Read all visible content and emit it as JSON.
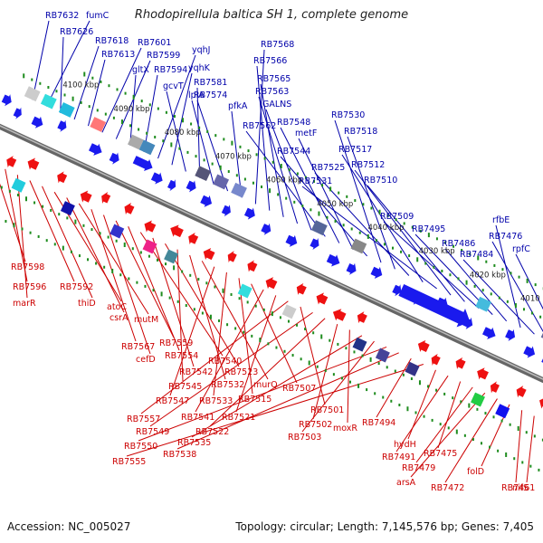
{
  "title": "Rhodopirellula baltica SH 1, complete genome",
  "footer": {
    "accession": "Accession: NC_005027",
    "topology": "Topology: circular; Length: 7,145,576 bp; Genes: 7,405"
  },
  "colors": {
    "forward": "#1a1aee",
    "reverse": "#ee1111",
    "forward_label": "#0000aa",
    "reverse_label": "#cc0000",
    "backbone": "#777777",
    "dots": "#1e8c1e"
  },
  "scale_ticks": [
    {
      "label": "4100 kbp"
    },
    {
      "label": "4090 kbp"
    },
    {
      "label": "4080 kbp"
    },
    {
      "label": "4070 kbp"
    },
    {
      "label": "4060 kbp"
    },
    {
      "label": "4050 kbp"
    },
    {
      "label": "4040 kbp"
    },
    {
      "label": "4030 kbp"
    },
    {
      "label": "4020 kbp"
    },
    {
      "label": "4010 kbp"
    }
  ],
  "forward_labels": [
    "RB7632",
    "fumC",
    "RB7626",
    "RB7618",
    "RB7613",
    "RB7601",
    "RB7599",
    "gltX",
    "RB7594",
    "yqhJ",
    "yqhK",
    "gcvT",
    "RB7581",
    "lplA",
    "RB7574",
    "pfkA",
    "RB7568",
    "RB7566",
    "RB7565",
    "RB7563",
    "GALNS",
    "RB7562",
    "RB7548",
    "metF",
    "RB7544",
    "RB7530",
    "RB7518",
    "RB7525",
    "RB7517",
    "RB7531",
    "RB7512",
    "RB7510",
    "RB7509",
    "RB7495",
    "RB7486",
    "rfbE",
    "RB7484",
    "RB7476",
    "rpfC"
  ],
  "reverse_labels": [
    "RB7598",
    "RB7596",
    "marR",
    "RB7592",
    "thiD",
    "atoC",
    "csrA",
    "mutM",
    "RB7567",
    "cefD",
    "RB7559",
    "RB7554",
    "RB7540",
    "RB7542",
    "RB7523",
    "RB7545",
    "RB7532",
    "murQ",
    "RB7547",
    "RB7533",
    "RB7515",
    "RB7507",
    "RB7541",
    "RB7521",
    "RB7557",
    "RB7501",
    "RB7549",
    "RB7522",
    "RB7502",
    "moxR",
    "RB7535",
    "RB7503",
    "RB7550",
    "RB7538",
    "RB7494",
    "RB7555",
    "hydH",
    "RB7491",
    "RB7475",
    "RB7479",
    "arsA",
    "RB7472",
    "folD",
    "RB7461",
    "nifS"
  ]
}
